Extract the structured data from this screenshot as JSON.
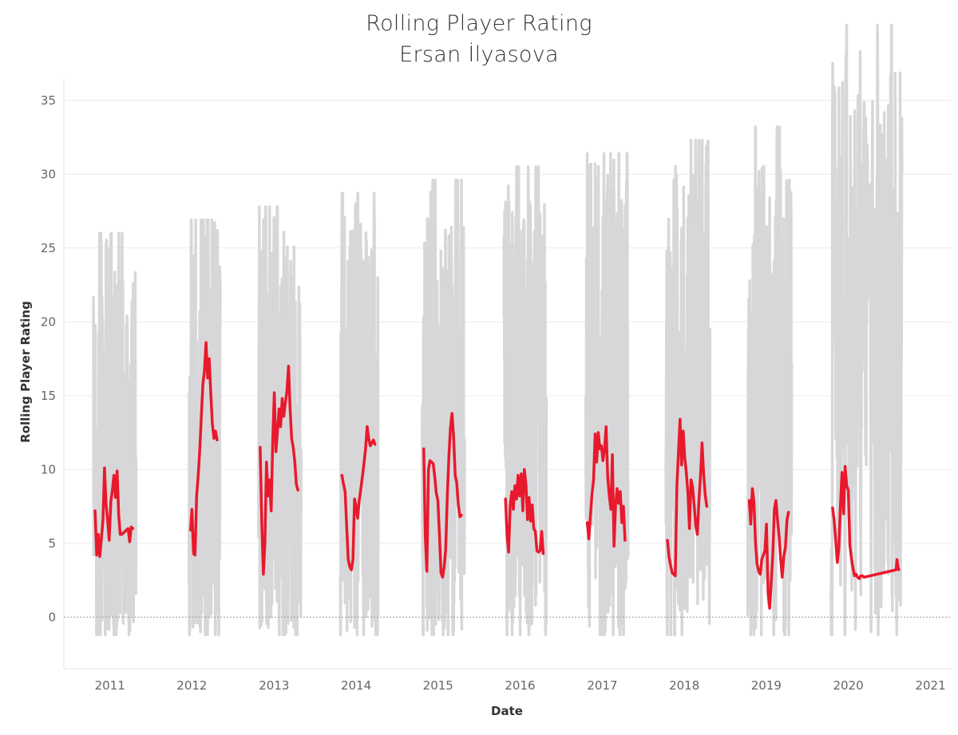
{
  "chart_data": {
    "type": "line",
    "title": "Rolling Player Rating",
    "subtitle": "Ersan İlyasova",
    "xlabel": "Date",
    "ylabel": "Rolling Player Rating",
    "xlim": [
      "2010-06-10",
      "2021-04-05"
    ],
    "ylim": [
      -3.5,
      36.5
    ],
    "x_ticks": [
      "2011",
      "2012",
      "2013",
      "2014",
      "2015",
      "2016",
      "2017",
      "2018",
      "2019",
      "2020",
      "2021"
    ],
    "y_ticks": [
      0,
      5,
      10,
      15,
      20,
      25,
      30,
      35
    ],
    "grid": true,
    "colors": {
      "highlight": "#e8192c",
      "background_players": "#d7d7d9"
    },
    "series": [
      {
        "name": "Ersan İlyasova",
        "points": [
          {
            "season": "2010-11",
            "dates": [
              "2010-10-27",
              "2010-11-03",
              "2010-11-10",
              "2010-11-17",
              "2010-11-24",
              "2010-12-01",
              "2010-12-08",
              "2010-12-15",
              "2010-12-22",
              "2010-12-29",
              "2011-01-05",
              "2011-01-12",
              "2011-01-19",
              "2011-01-26",
              "2011-02-02",
              "2011-02-09",
              "2011-02-16",
              "2011-02-23",
              "2011-03-02",
              "2011-03-09",
              "2011-03-16",
              "2011-03-23",
              "2011-03-30",
              "2011-04-06",
              "2011-04-13"
            ],
            "values": [
              7.2,
              4.2,
              5.6,
              4.1,
              5.3,
              6.6,
              10.1,
              7.6,
              6.5,
              5.2,
              7.8,
              8.6,
              9.6,
              8.1,
              9.9,
              6.9,
              5.6,
              5.6,
              5.7,
              5.8,
              5.9,
              6.0,
              5.1,
              6.1,
              6.0
            ]
          },
          {
            "season": "2011-12",
            "dates": [
              "2011-12-26",
              "2012-01-01",
              "2012-01-08",
              "2012-01-15",
              "2012-01-22",
              "2012-01-29",
              "2012-02-05",
              "2012-02-12",
              "2012-02-19",
              "2012-02-26",
              "2012-03-04",
              "2012-03-11",
              "2012-03-18",
              "2012-03-25",
              "2012-04-01",
              "2012-04-08",
              "2012-04-15",
              "2012-04-22"
            ],
            "values": [
              5.9,
              7.3,
              4.3,
              4.2,
              8.2,
              9.6,
              11.3,
              13.6,
              15.8,
              16.7,
              18.6,
              16.2,
              17.5,
              15.2,
              13.1,
              12.1,
              12.6,
              12.0
            ]
          },
          {
            "season": "2012-13",
            "dates": [
              "2012-10-31",
              "2012-11-07",
              "2012-11-14",
              "2012-11-21",
              "2012-11-28",
              "2012-12-05",
              "2012-12-12",
              "2012-12-19",
              "2012-12-26",
              "2013-01-02",
              "2013-01-09",
              "2013-01-16",
              "2013-01-23",
              "2013-01-30",
              "2013-02-06",
              "2013-02-13",
              "2013-02-20",
              "2013-02-27",
              "2013-03-06",
              "2013-03-13",
              "2013-03-20",
              "2013-03-27",
              "2013-04-03",
              "2013-04-10",
              "2013-04-17"
            ],
            "values": [
              11.5,
              6.4,
              2.9,
              5.0,
              10.5,
              8.2,
              9.3,
              7.2,
              12.1,
              15.2,
              11.2,
              12.6,
              14.1,
              12.9,
              14.8,
              13.6,
              14.5,
              15.3,
              17.0,
              14.2,
              12.1,
              11.5,
              10.5,
              9.0,
              8.6
            ]
          },
          {
            "season": "2013-14",
            "dates": [
              "2013-10-30",
              "2013-11-06",
              "2013-11-13",
              "2013-11-20",
              "2013-11-27",
              "2013-12-04",
              "2013-12-11",
              "2013-12-18",
              "2013-12-25",
              "2014-01-01",
              "2014-01-08",
              "2014-01-15",
              "2014-01-22",
              "2014-01-29",
              "2014-02-05",
              "2014-02-12",
              "2014-02-19",
              "2014-02-26",
              "2014-03-05",
              "2014-03-12",
              "2014-03-19",
              "2014-03-26"
            ],
            "values": [
              9.6,
              9.0,
              8.5,
              6.1,
              3.9,
              3.4,
              3.2,
              3.9,
              8.0,
              7.5,
              6.7,
              7.9,
              8.7,
              9.5,
              10.4,
              11.4,
              12.9,
              12.1,
              11.6,
              11.8,
              12.0,
              11.7
            ]
          },
          {
            "season": "2014-15",
            "dates": [
              "2014-10-29",
              "2014-11-05",
              "2014-11-12",
              "2014-11-19",
              "2014-11-26",
              "2014-12-03",
              "2014-12-10",
              "2014-12-17",
              "2014-12-24",
              "2014-12-31",
              "2015-01-07",
              "2015-01-14",
              "2015-01-21",
              "2015-01-28",
              "2015-02-04",
              "2015-02-11",
              "2015-02-18",
              "2015-02-25",
              "2015-03-04",
              "2015-03-11",
              "2015-03-18",
              "2015-03-25",
              "2015-04-01",
              "2015-04-08",
              "2015-04-15"
            ],
            "values": [
              11.4,
              5.5,
              3.1,
              10.0,
              10.6,
              10.5,
              10.4,
              9.5,
              8.4,
              7.9,
              5.5,
              3.0,
              2.7,
              3.4,
              4.6,
              8.2,
              10.9,
              12.8,
              13.8,
              12.2,
              9.6,
              9.1,
              7.6,
              6.8,
              6.9
            ]
          },
          {
            "season": "2015-16",
            "dates": [
              "2015-10-28",
              "2015-11-04",
              "2015-11-11",
              "2015-11-18",
              "2015-11-25",
              "2015-12-02",
              "2015-12-09",
              "2015-12-16",
              "2015-12-23",
              "2015-12-30",
              "2016-01-06",
              "2016-01-13",
              "2016-01-20",
              "2016-01-27",
              "2016-02-03",
              "2016-02-10",
              "2016-02-17",
              "2016-02-24",
              "2016-03-02",
              "2016-03-09",
              "2016-03-16",
              "2016-03-23",
              "2016-03-30",
              "2016-04-06",
              "2016-04-13"
            ],
            "values": [
              8.0,
              5.5,
              4.4,
              7.6,
              8.5,
              7.3,
              8.9,
              8.0,
              9.6,
              8.2,
              9.7,
              7.2,
              10.0,
              9.0,
              6.6,
              8.1,
              6.5,
              7.6,
              6.0,
              5.8,
              4.5,
              4.4,
              4.5,
              5.8,
              4.3
            ]
          },
          {
            "season": "2016-17",
            "dates": [
              "2016-10-26",
              "2016-11-02",
              "2016-11-09",
              "2016-11-16",
              "2016-11-23",
              "2016-11-30",
              "2016-12-07",
              "2016-12-14",
              "2016-12-21",
              "2016-12-28",
              "2017-01-04",
              "2017-01-11",
              "2017-01-18",
              "2017-01-25",
              "2017-02-01",
              "2017-02-08",
              "2017-02-15",
              "2017-02-22",
              "2017-03-01",
              "2017-03-08",
              "2017-03-15",
              "2017-03-22",
              "2017-03-29",
              "2017-04-05",
              "2017-04-12"
            ],
            "values": [
              6.4,
              5.3,
              6.8,
              8.3,
              9.3,
              12.4,
              10.5,
              12.5,
              11.4,
              11.6,
              10.6,
              11.4,
              12.9,
              9.5,
              8.2,
              7.3,
              11.0,
              4.8,
              7.6,
              8.7,
              7.7,
              8.5,
              6.4,
              7.5,
              5.2
            ]
          },
          {
            "season": "2017-18",
            "dates": [
              "2017-10-18",
              "2017-10-25",
              "2017-11-01",
              "2017-11-08",
              "2017-11-15",
              "2017-11-22",
              "2017-11-29",
              "2017-12-06",
              "2017-12-13",
              "2017-12-20",
              "2017-12-27",
              "2018-01-03",
              "2018-01-10",
              "2018-01-17",
              "2018-01-24",
              "2018-01-31",
              "2018-02-07",
              "2018-02-14",
              "2018-02-21",
              "2018-02-28",
              "2018-03-07",
              "2018-03-14",
              "2018-03-21",
              "2018-03-28",
              "2018-04-04",
              "2018-04-11"
            ],
            "values": [
              5.2,
              4.1,
              3.5,
              3.0,
              2.9,
              2.8,
              8.9,
              11.1,
              13.4,
              10.3,
              12.6,
              10.8,
              9.8,
              8.4,
              6.0,
              9.3,
              8.8,
              7.6,
              6.2,
              5.6,
              7.9,
              9.5,
              11.8,
              9.7,
              8.3,
              7.5
            ]
          },
          {
            "season": "2018-19",
            "dates": [
              "2018-10-17",
              "2018-10-24",
              "2018-10-31",
              "2018-11-07",
              "2018-11-14",
              "2018-11-21",
              "2018-11-28",
              "2018-12-05",
              "2018-12-12",
              "2018-12-19",
              "2018-12-26",
              "2019-01-02",
              "2019-01-09",
              "2019-01-16",
              "2019-01-23",
              "2019-01-30",
              "2019-02-06",
              "2019-02-13",
              "2019-02-20",
              "2019-02-27",
              "2019-03-06",
              "2019-03-13",
              "2019-03-20",
              "2019-03-27",
              "2019-04-03",
              "2019-04-10"
            ],
            "values": [
              7.9,
              6.3,
              8.7,
              7.8,
              5.0,
              3.6,
              3.1,
              2.9,
              3.9,
              4.2,
              4.5,
              6.3,
              1.6,
              0.6,
              2.4,
              4.2,
              7.3,
              7.9,
              6.6,
              5.5,
              3.9,
              2.7,
              4.1,
              4.7,
              6.6,
              7.1
            ]
          },
          {
            "season": "2019-20",
            "dates": [
              "2019-10-23",
              "2019-10-30",
              "2019-11-06",
              "2019-11-13",
              "2019-11-20",
              "2019-11-27",
              "2019-12-04",
              "2019-12-11",
              "2019-12-18",
              "2019-12-25",
              "2020-01-01",
              "2020-01-08",
              "2020-01-15",
              "2020-01-22",
              "2020-01-29",
              "2020-02-05",
              "2020-02-12",
              "2020-02-19",
              "2020-02-26",
              "2020-03-04",
              "2020-03-11",
              "2020-08-01",
              "2020-08-05",
              "2020-08-09",
              "2020-08-13"
            ],
            "values": [
              7.4,
              6.6,
              5.2,
              3.7,
              4.6,
              7.5,
              9.8,
              7.0,
              10.2,
              8.9,
              8.6,
              4.9,
              4.0,
              3.3,
              2.8,
              2.9,
              2.7,
              2.6,
              2.8,
              2.8,
              2.7,
              3.2,
              3.9,
              3.4,
              3.2
            ]
          }
        ]
      }
    ],
    "background_series": "all other players (league-wide rolling ratings, drawn in light grey)"
  }
}
